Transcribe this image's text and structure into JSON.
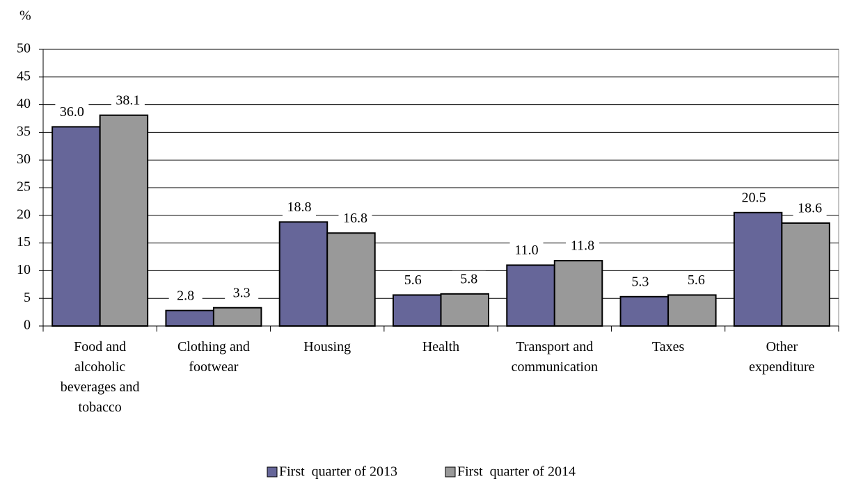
{
  "chart_data": {
    "type": "bar",
    "ylabel": "%",
    "categories": [
      "Food and\nalcoholic\nbeverages and\ntobacco",
      "Clothing and\nfootwear",
      "Housing",
      "Health",
      "Transport and\ncommunication",
      "Taxes",
      "Other\nexpenditure"
    ],
    "series": [
      {
        "name": "First  quarter of 2013",
        "color": "#666699",
        "values": [
          36.0,
          2.8,
          18.8,
          5.6,
          11.0,
          5.3,
          20.5
        ],
        "value_labels": [
          "36.0",
          "2.8",
          "18.8",
          "5.6",
          "11.0",
          "5.3",
          "20.5"
        ]
      },
      {
        "name": "First  quarter of 2014",
        "color": "#999999",
        "values": [
          38.1,
          3.3,
          16.8,
          5.8,
          11.8,
          5.6,
          18.6
        ],
        "value_labels": [
          "38.1",
          "3.3",
          "16.8",
          "5.8",
          "11.8",
          "5.6",
          "18.6"
        ]
      }
    ],
    "ylim": [
      0,
      50
    ],
    "yticks": [
      0,
      5,
      10,
      15,
      20,
      25,
      30,
      35,
      40,
      45,
      50
    ],
    "grid": true,
    "legend": "bottom"
  }
}
